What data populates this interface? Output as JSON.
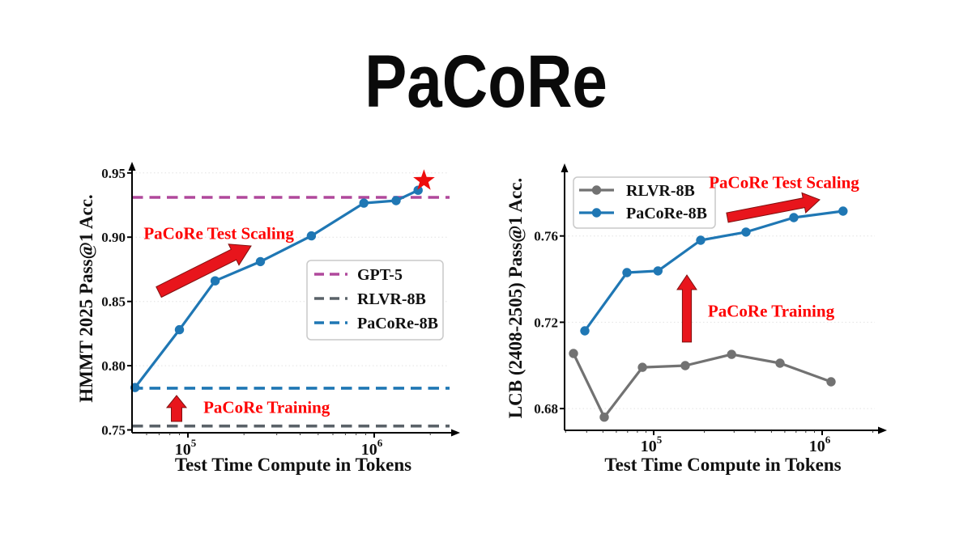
{
  "title": "PaCoRe",
  "accent_red": "#fe0000",
  "arrow_red": "#e8151c",
  "chart_data": [
    {
      "type": "line",
      "xlabel": "Test Time Compute in Tokens",
      "ylabel": "HMMT 2025 Pass@1 Acc.",
      "xscale": "log",
      "xlim_log": [
        4.7,
        6.3957
      ],
      "ylim": [
        0.7478,
        0.9568
      ],
      "xticks_exp": [
        5,
        6
      ],
      "yticks": [
        "0.75",
        "0.80",
        "0.85",
        "0.90",
        "0.95"
      ],
      "grid": "horizontal-dotted",
      "series": [
        {
          "name": "PaCoRe-8B test scaling",
          "color": "#1f77b4",
          "style": "solid",
          "marker": "circle",
          "x": [
            52000,
            90000,
            140000,
            245000,
            460000,
            880000,
            1310000,
            1720000
          ],
          "y": [
            0.783,
            0.828,
            0.866,
            0.881,
            0.901,
            0.9265,
            0.9285,
            0.9365
          ]
        }
      ],
      "end_marker": {
        "shape": "star",
        "color": "#ee0d0d",
        "x": 1850000,
        "y": 0.944
      },
      "ref_lines": [
        {
          "label": "GPT-5",
          "y": 0.931,
          "color": "#b0489c"
        },
        {
          "label": "RLVR-8B",
          "y": 0.753,
          "color": "#5a6268"
        },
        {
          "label": "PaCoRe-8B",
          "y": 0.7825,
          "color": "#1f77b4"
        }
      ],
      "legend": {
        "position": "center-right",
        "entries": [
          {
            "label": "GPT-5",
            "color": "#b0489c",
            "style": "dashed"
          },
          {
            "label": "RLVR-8B",
            "color": "#5a6268",
            "style": "dashed"
          },
          {
            "label": "PaCoRe-8B",
            "color": "#1f77b4",
            "style": "dashed"
          }
        ]
      },
      "annotations": [
        {
          "id": "test-scaling",
          "text": "PaCoRe Test Scaling",
          "x_log": 5.1658,
          "y": 0.9033
        },
        {
          "id": "training",
          "text": "PaCoRe Training",
          "x_log": 5.4226,
          "y": 0.7679
        }
      ],
      "arrows": [
        {
          "x1_log": 4.8435,
          "y1": 0.8573,
          "x2_log": 5.3392,
          "y2": 0.8932,
          "sw": 7.2,
          "hl": 24,
          "hw": 14.5
        },
        {
          "x1_log": 4.9392,
          "y1": 0.7566,
          "x2_log": 4.9392,
          "y2": 0.7768,
          "sw": 6.5,
          "hl": 15,
          "hw": 12
        }
      ]
    },
    {
      "type": "line",
      "xlabel": "Test Time Compute in Tokens",
      "ylabel": "LCB (2408-2505) Pass@1 Acc.",
      "xscale": "log",
      "xlim_log": [
        4.471,
        6.3125
      ],
      "ylim": [
        0.6699,
        0.7925
      ],
      "xticks_exp": [
        5,
        6
      ],
      "yticks": [
        "0.68",
        "0.72",
        "0.76"
      ],
      "grid": "horizontal-dotted",
      "series": [
        {
          "name": "RLVR-8B",
          "color": "#727272",
          "style": "solid",
          "marker": "circle",
          "x": [
            33400,
            50900,
            85700,
            154000,
            290000,
            562000,
            1130000
          ],
          "y": [
            0.7055,
            0.676,
            0.6991,
            0.6999,
            0.7051,
            0.701,
            0.6924
          ]
        },
        {
          "name": "PaCoRe-8B",
          "color": "#1f77b4",
          "style": "solid",
          "marker": "circle",
          "x": [
            39000,
            69400,
            106000,
            190000,
            353000,
            679000,
            1330000
          ],
          "y": [
            0.716,
            0.743,
            0.7438,
            0.758,
            0.7618,
            0.7685,
            0.7715
          ]
        }
      ],
      "legend": {
        "position": "top-left",
        "entries": [
          {
            "label": "RLVR-8B",
            "color": "#727272",
            "style": "solid-marker"
          },
          {
            "label": "PaCoRe-8B",
            "color": "#1f77b4",
            "style": "solid-marker"
          }
        ]
      },
      "annotations": [
        {
          "id": "test-scaling",
          "text": "PaCoRe Test Scaling",
          "x_log": 5.7741,
          "y": 0.785
        },
        {
          "id": "training",
          "text": "PaCoRe Training",
          "x_log": 5.697,
          "y": 0.7254
        }
      ],
      "arrows": [
        {
          "x1_log": 5.4374,
          "y1": 0.7685,
          "x2_log": 5.9855,
          "y2": 0.7768,
          "sw": 6,
          "hl": 20,
          "hw": 12.5
        },
        {
          "x1_log": 5.197,
          "y1": 0.7108,
          "x2_log": 5.197,
          "y2": 0.7419,
          "sw": 5.6,
          "hl": 18,
          "hw": 12
        }
      ]
    }
  ]
}
